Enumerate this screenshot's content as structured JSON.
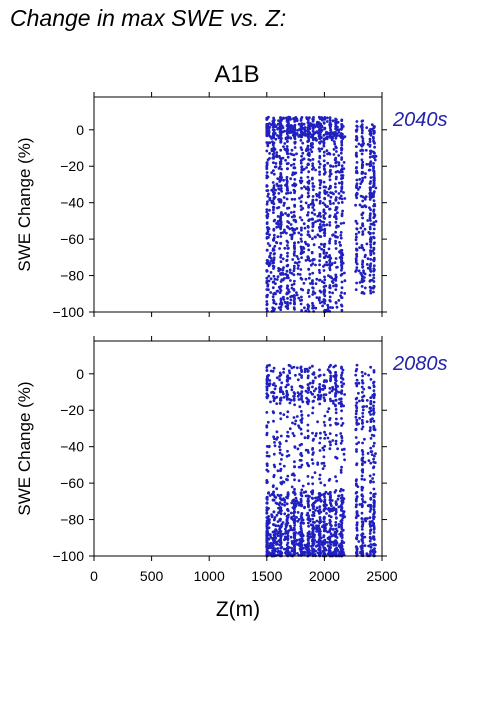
{
  "figure_title": "Change in max SWE vs. Z:",
  "colors": {
    "points": "#2020c0",
    "axis": "#000000",
    "period_label": "#2222aa"
  },
  "chart_data": [
    {
      "type": "scatter",
      "title": "A1B",
      "period_label": "2040s",
      "xlabel": "",
      "ylabel": "SWE Change (%)",
      "xlim": [
        0,
        2500
      ],
      "ylim": [
        -100,
        18
      ],
      "x_ticks": [
        0,
        500,
        1000,
        1500,
        2000,
        2500
      ],
      "y_ticks": [
        0,
        -20,
        -40,
        -60,
        -80,
        -100
      ],
      "y_tick_labels": [
        "0",
        "−20",
        "−40",
        "−60",
        "−80",
        "−100"
      ],
      "grid": false,
      "distribution": {
        "x_range": [
          1500,
          2450
        ],
        "y_range": [
          -100,
          8
        ],
        "note_vertical_bands": [
          1500,
          1560,
          1620,
          1680,
          1740,
          1800,
          1860,
          1900,
          1960,
          2000,
          2050,
          2100,
          2150,
          2280,
          2330,
          2400,
          2430
        ]
      }
    },
    {
      "type": "scatter",
      "title": "",
      "period_label": "2080s",
      "xlabel": "Z(m)",
      "ylabel": "SWE Change (%)",
      "xlim": [
        0,
        2500
      ],
      "ylim": [
        -100,
        18
      ],
      "x_ticks": [
        0,
        500,
        1000,
        1500,
        2000,
        2500
      ],
      "x_tick_labels": [
        "0",
        "500",
        "1000",
        "1500",
        "2000",
        "2500"
      ],
      "y_ticks": [
        0,
        -20,
        -40,
        -60,
        -80,
        -100
      ],
      "y_tick_labels": [
        "0",
        "−20",
        "−40",
        "−60",
        "−80",
        "−100"
      ],
      "grid": false,
      "distribution": {
        "x_range": [
          1500,
          2450
        ],
        "y_range": [
          -100,
          6
        ],
        "note_vertical_bands": [
          1500,
          1560,
          1620,
          1680,
          1740,
          1800,
          1860,
          1900,
          1960,
          2000,
          2050,
          2100,
          2150,
          2280,
          2330,
          2400,
          2430
        ]
      }
    }
  ]
}
